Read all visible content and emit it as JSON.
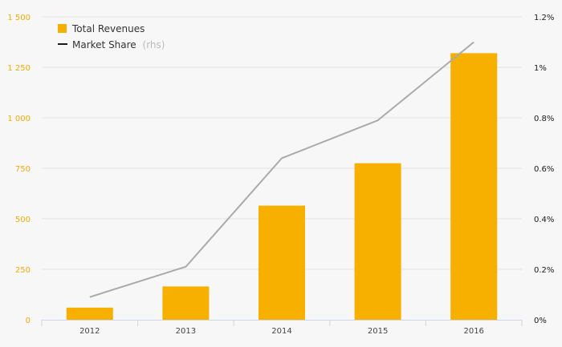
{
  "chart_data": {
    "type": "bar",
    "categories": [
      "2012",
      "2013",
      "2014",
      "2015",
      "2016"
    ],
    "series": [
      {
        "name": "Total Revenues",
        "type": "bar",
        "axis": "left",
        "values": [
          60,
          165,
          565,
          775,
          1320
        ]
      },
      {
        "name": "Market Share",
        "type": "line",
        "axis": "right",
        "values": [
          0.09,
          0.21,
          0.64,
          0.79,
          1.1
        ]
      }
    ],
    "y_left": {
      "min": 0,
      "max": 1500,
      "ticks": [
        {
          "value": 0,
          "label": "0"
        },
        {
          "value": 250,
          "label": "250"
        },
        {
          "value": 500,
          "label": "500"
        },
        {
          "value": 750,
          "label": "750"
        },
        {
          "value": 1000,
          "label": "1 000"
        },
        {
          "value": 1250,
          "label": "1 250"
        },
        {
          "value": 1500,
          "label": "1 500"
        }
      ]
    },
    "y_right": {
      "min": 0,
      "max": 1.2,
      "ticks": [
        {
          "value": 0,
          "label": "0%"
        },
        {
          "value": 0.2,
          "label": "0.2%"
        },
        {
          "value": 0.4,
          "label": "0.4%"
        },
        {
          "value": 0.6,
          "label": "0.6%"
        },
        {
          "value": 0.8,
          "label": "0.8%"
        },
        {
          "value": 1.0,
          "label": "1%"
        },
        {
          "value": 1.2,
          "label": "1.2%"
        }
      ]
    },
    "legend": {
      "position": "top-left",
      "items": [
        {
          "label": "Total Revenues",
          "suffix": ""
        },
        {
          "label": "Market Share",
          "suffix": "(rhs)"
        }
      ]
    },
    "grid": true,
    "colors": {
      "bar": "#f7b000",
      "line": "#aaaaaa",
      "left_axis": "#f2a900",
      "right_axis": "#1a1a1a",
      "grid": "#e3e3e3",
      "axis": "#ccd6eb"
    }
  }
}
